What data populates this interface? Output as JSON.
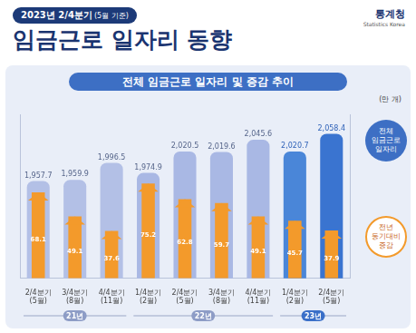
{
  "header": {
    "period": "2023년 2/4분기",
    "basis": "(5월 기준)",
    "title": "임금근로 일자리 동향",
    "agency": "통계청",
    "agency_en": "Statistics Korea"
  },
  "chart_data": {
    "type": "bar",
    "title": "전체 임금근로 일자리 및 증감 추이",
    "y_label": "(만 개)",
    "categories": [
      [
        "2/4분기",
        "(5월)"
      ],
      [
        "3/4분기",
        "(8월)"
      ],
      [
        "4/4분기",
        "(11월)"
      ],
      [
        "1/4분기",
        "(2월)"
      ],
      [
        "2/4분기",
        "(5월)"
      ],
      [
        "3/4분기",
        "(8월)"
      ],
      [
        "4/4분기",
        "(11월)"
      ],
      [
        "1/4분기",
        "(2월)"
      ],
      [
        "2/4분기",
        "(5월)"
      ]
    ],
    "year_labels": [
      "21년",
      null,
      null,
      "22년",
      null,
      null,
      null,
      "23년",
      null
    ],
    "series": [
      {
        "name": "전체 임금근로 일자리",
        "colors": [
          "#b3c0e6",
          "#b3c0e6",
          "#b3c0e6",
          "#a9b8e4",
          "#a9b8e4",
          "#a9b8e4",
          "#a9b8e4",
          "#4a86d8",
          "#3a74d0"
        ],
        "values": [
          1957.7,
          1959.9,
          1996.5,
          1974.9,
          2020.5,
          2019.6,
          2045.6,
          2020.7,
          2058.4
        ],
        "value_labels": [
          "1,957.7",
          "1,959.9",
          "1,996.5",
          "1,974.9",
          "2,020.5",
          "2,019.6",
          "2,045.6",
          "2,020.7",
          "2,058.4"
        ]
      },
      {
        "name": "전년 동기대비 증감",
        "color": "#f39a2b",
        "marker": "arrow",
        "axis": "y2",
        "values": [
          68.1,
          49.1,
          37.6,
          75.2,
          62.8,
          59.7,
          49.1,
          45.7,
          37.9
        ]
      }
    ],
    "ylim": [
      1750,
      2100
    ],
    "y2lim": [
      0,
      130
    ],
    "grid": false,
    "legend": "right",
    "data_labels": true,
    "tick_labels": "x"
  }
}
